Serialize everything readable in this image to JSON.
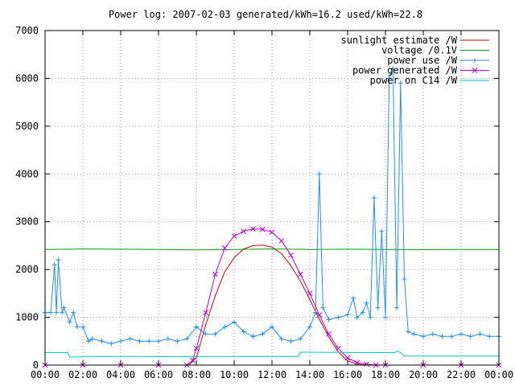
{
  "chart_data": {
    "type": "line",
    "title": "Power log: 2007-02-03 generated/kWh=16.2 used/kWh=22.8",
    "x_tick_labels": [
      "00:00",
      "02:00",
      "04:00",
      "06:00",
      "08:00",
      "10:00",
      "12:00",
      "14:00",
      "16:00",
      "18:00",
      "20:00",
      "22:00",
      "00:00"
    ],
    "y_tick_labels": [
      "0",
      "1000",
      "2000",
      "3000",
      "4000",
      "5000",
      "6000",
      "7000"
    ],
    "xlim": [
      0,
      24
    ],
    "ylim": [
      0,
      7000
    ],
    "grid": true,
    "legend_position": "top-right",
    "series": [
      {
        "name": "sunlight estimate /W",
        "color": "#d00000",
        "marker": "none",
        "x": [
          7.6,
          8.0,
          8.5,
          9.0,
          9.5,
          10.0,
          10.5,
          11.0,
          11.5,
          12.0,
          12.5,
          13.0,
          13.5,
          14.0,
          14.5,
          15.0,
          15.5,
          16.0,
          16.5,
          17.0,
          17.3
        ],
        "values": [
          0,
          150,
          850,
          1450,
          1950,
          2250,
          2430,
          2500,
          2510,
          2470,
          2330,
          2080,
          1760,
          1370,
          960,
          590,
          280,
          90,
          20,
          0,
          0
        ]
      },
      {
        "name": "voltage /0.1V",
        "color": "#00a000",
        "marker": "none",
        "x": [
          0,
          2,
          4,
          6,
          8,
          10,
          12,
          14,
          16,
          18,
          20,
          22,
          24
        ],
        "values": [
          2420,
          2430,
          2425,
          2420,
          2410,
          2420,
          2430,
          2420,
          2425,
          2420,
          2415,
          2420,
          2420
        ]
      },
      {
        "name": "power use /W",
        "color": "#1e90ff",
        "marker": "plus",
        "x": [
          0,
          0.3,
          0.5,
          0.6,
          0.7,
          0.9,
          1.0,
          1.3,
          1.5,
          1.7,
          2.0,
          2.3,
          2.5,
          3.0,
          3.5,
          4.0,
          4.5,
          5.0,
          5.5,
          6.0,
          6.5,
          7.0,
          7.5,
          8.0,
          8.5,
          9.0,
          9.5,
          10.0,
          10.5,
          11.0,
          11.5,
          12.0,
          12.5,
          13.0,
          13.5,
          14.0,
          14.3,
          14.5,
          14.7,
          15.0,
          15.5,
          16.0,
          16.3,
          16.5,
          16.8,
          17.0,
          17.2,
          17.4,
          17.6,
          17.8,
          18.0,
          18.2,
          18.4,
          18.6,
          18.8,
          19.0,
          19.2,
          19.5,
          20.0,
          20.5,
          21.0,
          21.5,
          22.0,
          22.5,
          23.0,
          23.5,
          24.0
        ],
        "values": [
          1100,
          1100,
          2100,
          1100,
          2200,
          1100,
          1200,
          900,
          1100,
          800,
          800,
          500,
          550,
          500,
          450,
          500,
          550,
          500,
          500,
          500,
          550,
          500,
          550,
          800,
          650,
          650,
          800,
          900,
          700,
          600,
          650,
          800,
          550,
          500,
          550,
          800,
          1100,
          4000,
          1200,
          950,
          1000,
          1050,
          1400,
          1000,
          1100,
          1300,
          1000,
          3500,
          1200,
          2800,
          1000,
          6000,
          6200,
          1200,
          5900,
          1800,
          700,
          650,
          600,
          650,
          600,
          600,
          650,
          600,
          650,
          600,
          600
        ]
      },
      {
        "name": "power generated /W",
        "color": "#c000e0",
        "marker": "x",
        "x": [
          0,
          2,
          4,
          6,
          7.5,
          7.8,
          8.0,
          8.5,
          9.0,
          9.5,
          10.0,
          10.5,
          11.0,
          11.5,
          12.0,
          12.5,
          13.0,
          13.5,
          14.0,
          14.5,
          15.0,
          15.5,
          16.0,
          16.5,
          17.0,
          17.5,
          18.0,
          20.0,
          22.0,
          24.0
        ],
        "values": [
          0,
          0,
          0,
          0,
          0,
          100,
          350,
          1100,
          1900,
          2450,
          2700,
          2800,
          2850,
          2840,
          2780,
          2600,
          2300,
          1900,
          1500,
          1050,
          650,
          350,
          150,
          50,
          20,
          0,
          0,
          0,
          0,
          0
        ]
      },
      {
        "name": "power on C14 /W",
        "color": "#00c8c8",
        "marker": "none",
        "x": [
          0,
          1.2,
          1.3,
          2.0,
          2.1,
          5.0,
          7.0,
          9.0,
          11.0,
          13.0,
          13.4,
          13.5,
          17.0,
          18.5,
          18.6,
          18.8,
          19.0,
          20.0,
          22.0,
          24.0
        ],
        "values": [
          260,
          260,
          170,
          170,
          180,
          180,
          175,
          180,
          180,
          180,
          180,
          270,
          260,
          260,
          300,
          260,
          190,
          190,
          190,
          190
        ]
      }
    ]
  }
}
